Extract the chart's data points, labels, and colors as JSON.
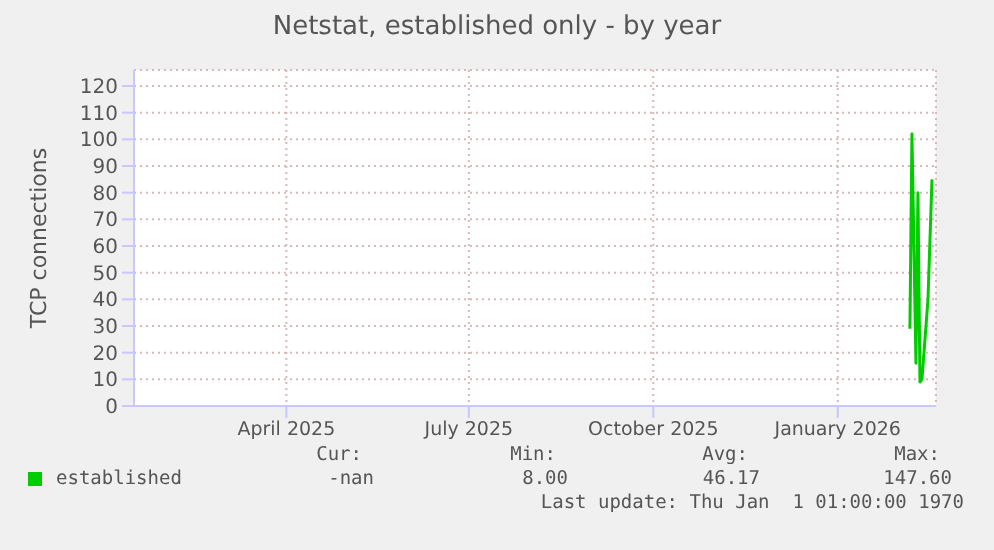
{
  "chart_data": {
    "type": "line",
    "title": "Netstat, established only - by year",
    "ylabel": "TCP connections",
    "x": [
      "2026-02-21",
      "2026-02-22",
      "2026-02-24",
      "2026-02-25",
      "2026-02-26",
      "2026-02-27",
      "2026-03-02",
      "2026-03-04"
    ],
    "series": [
      {
        "name": "established",
        "color": "#00cc00",
        "values": [
          29,
          102,
          16,
          80,
          9,
          10,
          40,
          85
        ]
      }
    ],
    "xlim": [
      "2025-01-30",
      "2026-03-06"
    ],
    "xticks": [
      {
        "value": "2025-04-16",
        "label": "April 2025"
      },
      {
        "value": "2025-07-16",
        "label": "July 2025"
      },
      {
        "value": "2025-10-16",
        "label": "October 2025"
      },
      {
        "value": "2026-01-16",
        "label": "January 2026"
      }
    ],
    "ylim": [
      0,
      126
    ],
    "yticks": [
      0,
      10,
      20,
      30,
      40,
      50,
      60,
      70,
      80,
      90,
      100,
      110,
      120
    ],
    "grid": true,
    "legend": "bottom left",
    "marker": "none",
    "line_style": "solid",
    "annotations": [
      "Cur:",
      "Min:",
      "Avg:",
      "Max:",
      "-nan",
      "8.00",
      "46.17",
      "147.60",
      "Last update: Thu Jan  1 01:00:00 1970"
    ]
  }
}
